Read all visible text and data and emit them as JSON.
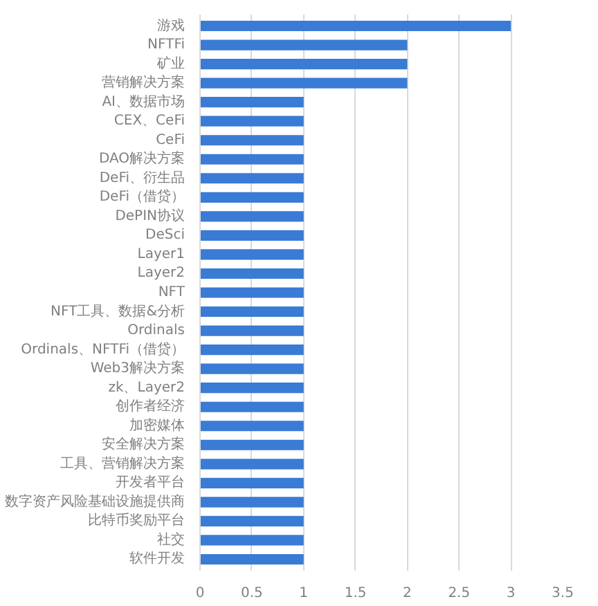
{
  "chart_data": {
    "type": "bar",
    "orientation": "horizontal",
    "categories": [
      "游戏",
      "NFTFi",
      "矿业",
      "营销解决方案",
      "AI、数据市场",
      "CEX、CeFi",
      "CeFi",
      "DAO解决方案",
      "DeFi、衍生品",
      "DeFi（借贷）",
      "DePIN协议",
      "DeSci",
      "Layer1",
      "Layer2",
      "NFT",
      "NFT工具、数据&分析",
      "Ordinals",
      "Ordinals、NFTFi（借贷）",
      "Web3解决方案",
      "zk、Layer2",
      "创作者经济",
      "加密媒体",
      "安全解决方案",
      "工具、营销解决方案",
      "开发者平台",
      "数字资产风险基础设施提供商",
      "比特币奖励平台",
      "社交",
      "软件开发"
    ],
    "values": [
      3,
      2,
      2,
      2,
      1,
      1,
      1,
      1,
      1,
      1,
      1,
      1,
      1,
      1,
      1,
      1,
      1,
      1,
      1,
      1,
      1,
      1,
      1,
      1,
      1,
      1,
      1,
      1,
      1
    ],
    "color": "#3a7bd5",
    "xlim": [
      0,
      3.5
    ],
    "xticks": [
      0,
      0.5,
      1,
      1.5,
      2,
      2.5,
      3,
      3.5
    ],
    "grid": "x"
  }
}
